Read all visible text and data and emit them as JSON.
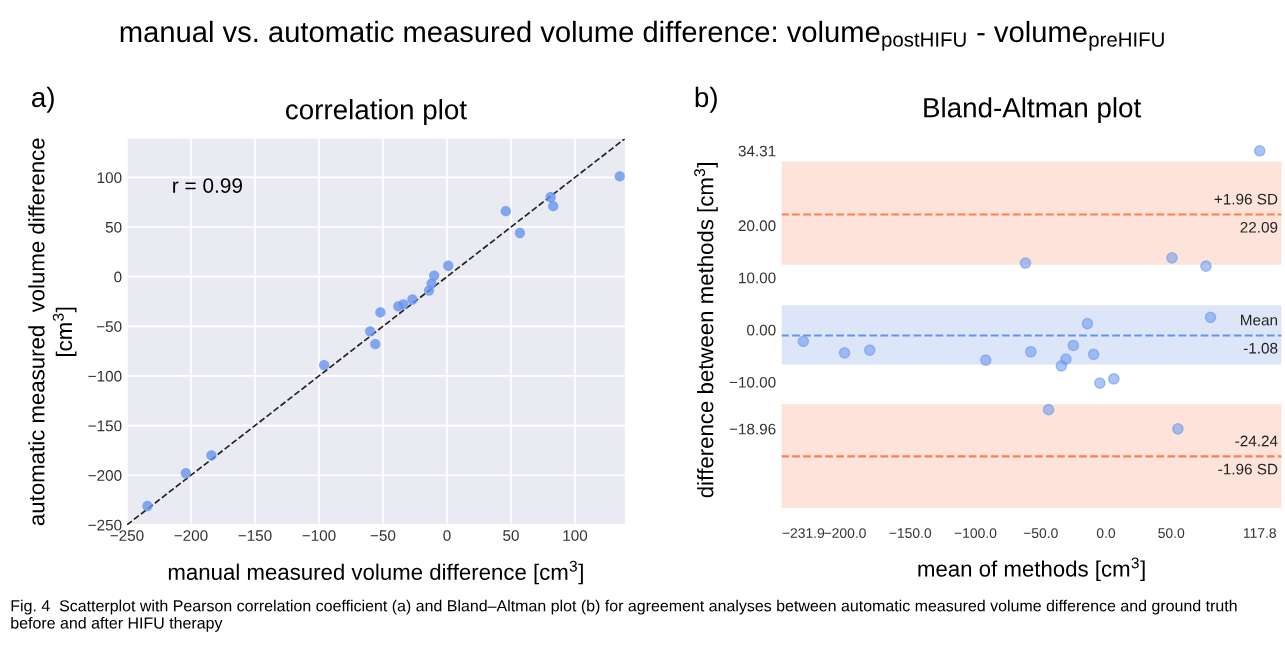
{
  "chart_data": [
    {
      "type": "scatter",
      "title": "correlation plot",
      "xlabel": "manual measured volume difference [cm$^{3}$]",
      "ylabel": "automatic measured  volume difference\n[cm$^{3}$]",
      "annotations": [
        "manual vs. automatic measured volume difference: volume$_{postHIFU}$ - volume$_{preHIFU}$",
        "a)",
        "r = 0.99"
      ],
      "series": [
        {
          "type": "scatter",
          "color": "#6495ed",
          "x": [
            -234,
            -204,
            -184,
            -96,
            -60,
            -56,
            -52,
            -38,
            -34,
            -27,
            -14,
            -12,
            -10,
            1,
            46,
            57,
            81,
            83,
            135
          ],
          "values": [
            -231,
            -198,
            -180,
            -89,
            -55,
            -68,
            -36,
            -30,
            -28,
            -23,
            -14,
            -7,
            1,
            11,
            66,
            44,
            80,
            71,
            101
          ]
        },
        {
          "type": "line",
          "color": "#222222",
          "line_style": "dashed",
          "marker": "none",
          "x": [
            -250,
            139
          ],
          "values": [
            -250,
            139
          ]
        }
      ],
      "marker": "circle",
      "grid": true,
      "xlim": [
        -250,
        139
      ],
      "ylim": [
        -250,
        139
      ],
      "xticks": [
        {
          "value": -250,
          "label": "−250"
        },
        {
          "value": -200,
          "label": "−200"
        },
        {
          "value": -150,
          "label": "−150"
        },
        {
          "value": -100,
          "label": "−100"
        },
        {
          "value": -50,
          "label": "−50"
        },
        0,
        50,
        100
      ],
      "yticks": [
        {
          "value": -250,
          "label": "−250"
        },
        {
          "value": -200,
          "label": "−200"
        },
        {
          "value": -150,
          "label": "−150"
        },
        {
          "value": -100,
          "label": "−100"
        },
        {
          "value": -50,
          "label": "−50"
        },
        0,
        50,
        100
      ]
    },
    {
      "type": "scatter",
      "title": "Bland-Altman plot",
      "xlabel": "mean of methods [cm$^{3}$]",
      "ylabel": "difference between methods [cm$^{3}$]",
      "annotations": [
        "b)",
        "Fig. 4  Scatterplot with Pearson correlation coefficient (a) and Bland–Altman plot (b) for agreement analyses between automatic measured volume difference and ground truth before and after HIFU therapy"
      ],
      "x": [
        -231.9,
        -200.3,
        -181,
        -92.1,
        -61.7,
        -57.6,
        -44,
        -34.2,
        -30.7,
        -25,
        -14.2,
        -9.5,
        -4.7,
        6.0,
        50.6,
        55.1,
        76.6,
        80.1,
        117.8
      ],
      "values": [
        -2.2,
        -4.4,
        -3.9,
        -5.8,
        12.8,
        -4.2,
        -15.3,
        -6.9,
        -5.6,
        -3.0,
        1.2,
        -4.7,
        -10.2,
        -9.4,
        13.8,
        -18.96,
        12.2,
        2.4,
        34.31
      ],
      "color": "#6495ed",
      "marker": "circle",
      "ref_lines": [
        {
          "axis": "y",
          "value": 22.09,
          "label": "+1.96 SD\n22.09",
          "color": "#ff7f50",
          "line_style": "dashed"
        },
        {
          "axis": "y",
          "value": -1.08,
          "label": "Mean\n-1.08",
          "color": "#6495ed",
          "line_style": "dashed"
        },
        {
          "axis": "y",
          "value": -24.24,
          "label": "-24.24\n-1.96 SD",
          "color": "#ff7f50",
          "line_style": "dashed"
        }
      ],
      "bands": [
        {
          "axis": "y",
          "from": 12.48,
          "to": 32.24,
          "color": "#fde3da"
        },
        {
          "axis": "y",
          "from": -6.64,
          "to": 4.72,
          "color": "#dde6f8"
        },
        {
          "axis": "y",
          "from": -34.16,
          "to": -14.24,
          "color": "#fde3da"
        }
      ],
      "xlim": [
        -249,
        135
      ],
      "ylim": [
        -37,
        37
      ],
      "xticks": [
        {
          "value": -231.9,
          "label": "−231.9"
        },
        {
          "value": -200,
          "label": "−200.0"
        },
        {
          "value": -150,
          "label": "−150.0"
        },
        {
          "value": -100,
          "label": "−100.0"
        },
        {
          "value": -50,
          "label": "−50.0"
        },
        {
          "value": 0,
          "label": "0.0"
        },
        {
          "value": 50,
          "label": "50.0"
        },
        {
          "value": 117.8,
          "label": "117.8"
        }
      ],
      "yticks": [
        {
          "value": 34.31,
          "label": "34.31"
        },
        {
          "value": 20,
          "label": "20.00"
        },
        {
          "value": 10,
          "label": "10.00"
        },
        {
          "value": 0,
          "label": "0.00"
        },
        {
          "value": -10,
          "label": "−10.00"
        },
        {
          "value": -18.96,
          "label": "−18.96"
        }
      ]
    }
  ]
}
